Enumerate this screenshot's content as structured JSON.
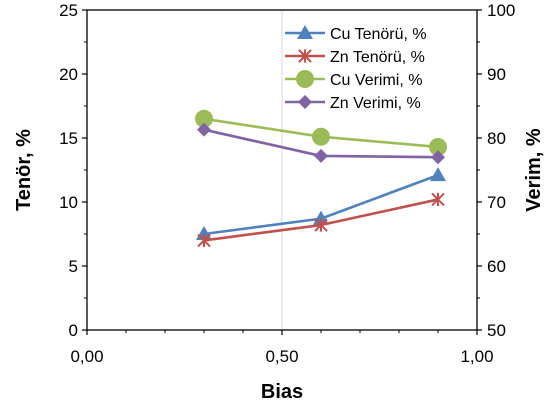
{
  "chart_data": {
    "type": "line",
    "xlabel": "Bias",
    "ylabel_left": "Tenör, %",
    "ylabel_right": "Verim, %",
    "x_ticks": [
      "0,00",
      "0,50",
      "1,00"
    ],
    "x_tick_values": [
      0,
      0.5,
      1.0
    ],
    "left_ticks": [
      "0",
      "5",
      "10",
      "15",
      "20",
      "25"
    ],
    "left_tick_values": [
      0,
      5,
      10,
      15,
      20,
      25
    ],
    "right_ticks": [
      "50",
      "60",
      "70",
      "80",
      "90",
      "100"
    ],
    "right_tick_values": [
      50,
      60,
      70,
      80,
      90,
      100
    ],
    "xlim": [
      0,
      1.0
    ],
    "ylim_left": [
      0,
      25
    ],
    "ylim_right": [
      50,
      100
    ],
    "grid": "vertical",
    "legend_position": "top-right",
    "series": [
      {
        "name": "Cu Tenörü, %",
        "axis": "left",
        "color": "#4F81BD",
        "marker": "triangle",
        "x": [
          0.3,
          0.6,
          0.9
        ],
        "y": [
          7.5,
          8.7,
          12.1
        ]
      },
      {
        "name": "Zn Tenörü, %",
        "axis": "left",
        "color": "#C0504D",
        "marker": "asterisk",
        "x": [
          0.3,
          0.6,
          0.9
        ],
        "y": [
          7.0,
          8.2,
          10.2
        ]
      },
      {
        "name": "Cu Verimi, %",
        "axis": "right",
        "color": "#9BBB59",
        "marker": "circle",
        "x": [
          0.3,
          0.6,
          0.9
        ],
        "y": [
          83.0,
          80.2,
          78.6
        ]
      },
      {
        "name": "Zn Verimi, %",
        "axis": "right",
        "color": "#8064A2",
        "marker": "diamond",
        "x": [
          0.3,
          0.6,
          0.9
        ],
        "y": [
          81.3,
          77.2,
          77.0
        ]
      }
    ]
  }
}
